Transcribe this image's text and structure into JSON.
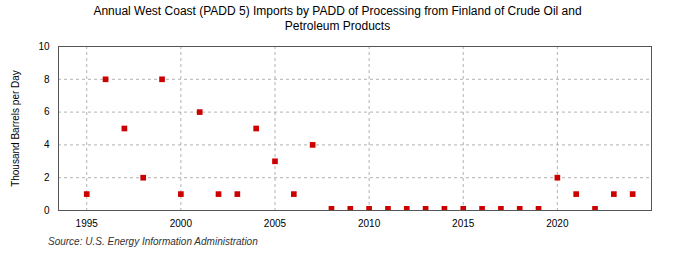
{
  "chart_data": {
    "type": "scatter",
    "title": "Annual West Coast (PADD 5) Imports by PADD of Processing from Finland of Crude Oil and\nPetroleum Products",
    "ylabel": "Thousand Barrels per Day",
    "source": "Source: U.S. Energy Information Administration",
    "x": [
      1995,
      1996,
      1997,
      1998,
      1999,
      2000,
      2001,
      2002,
      2003,
      2004,
      2005,
      2006,
      2007,
      2008,
      2009,
      2010,
      2011,
      2012,
      2013,
      2014,
      2015,
      2016,
      2017,
      2018,
      2019,
      2020,
      2021,
      2022,
      2023,
      2024
    ],
    "values": [
      1,
      8,
      5,
      2,
      8,
      1,
      6,
      1,
      1,
      5,
      3,
      1,
      4,
      0.1,
      0.1,
      0.1,
      0.1,
      0.1,
      0.1,
      0.1,
      0.1,
      0.1,
      0.1,
      0.1,
      0.1,
      2,
      1,
      0.1,
      1,
      1
    ],
    "color": "#cc0000",
    "marker": "square",
    "xlim": [
      1993.5,
      2025
    ],
    "ylim": [
      0,
      10
    ],
    "xticks": [
      1995,
      2000,
      2005,
      2010,
      2015,
      2020
    ],
    "yticks": [
      0,
      2,
      4,
      6,
      8,
      10
    ],
    "grid": true
  }
}
